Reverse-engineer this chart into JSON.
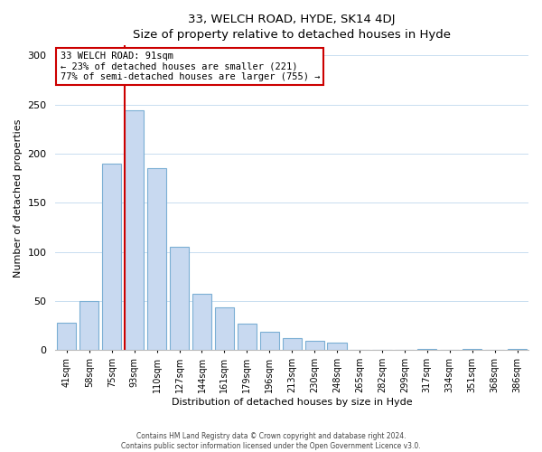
{
  "title": "33, WELCH ROAD, HYDE, SK14 4DJ",
  "subtitle": "Size of property relative to detached houses in Hyde",
  "xlabel": "Distribution of detached houses by size in Hyde",
  "ylabel": "Number of detached properties",
  "bar_labels": [
    "41sqm",
    "58sqm",
    "75sqm",
    "93sqm",
    "110sqm",
    "127sqm",
    "144sqm",
    "161sqm",
    "179sqm",
    "196sqm",
    "213sqm",
    "230sqm",
    "248sqm",
    "265sqm",
    "282sqm",
    "299sqm",
    "317sqm",
    "334sqm",
    "351sqm",
    "368sqm",
    "386sqm"
  ],
  "bar_values": [
    28,
    50,
    190,
    244,
    185,
    105,
    57,
    44,
    27,
    19,
    12,
    10,
    8,
    0,
    0,
    0,
    1,
    0,
    1,
    0,
    1
  ],
  "bar_color": "#c8d9f0",
  "bar_edge_color": "#7bafd4",
  "vline_bar_index": 3,
  "vline_color": "#cc0000",
  "annotation_title": "33 WELCH ROAD: 91sqm",
  "annotation_line1": "← 23% of detached houses are smaller (221)",
  "annotation_line2": "77% of semi-detached houses are larger (755) →",
  "box_facecolor": "#ffffff",
  "box_edgecolor": "#cc0000",
  "ylim": [
    0,
    310
  ],
  "yticks": [
    0,
    50,
    100,
    150,
    200,
    250,
    300
  ],
  "footer1": "Contains HM Land Registry data © Crown copyright and database right 2024.",
  "footer2": "Contains public sector information licensed under the Open Government Licence v3.0."
}
